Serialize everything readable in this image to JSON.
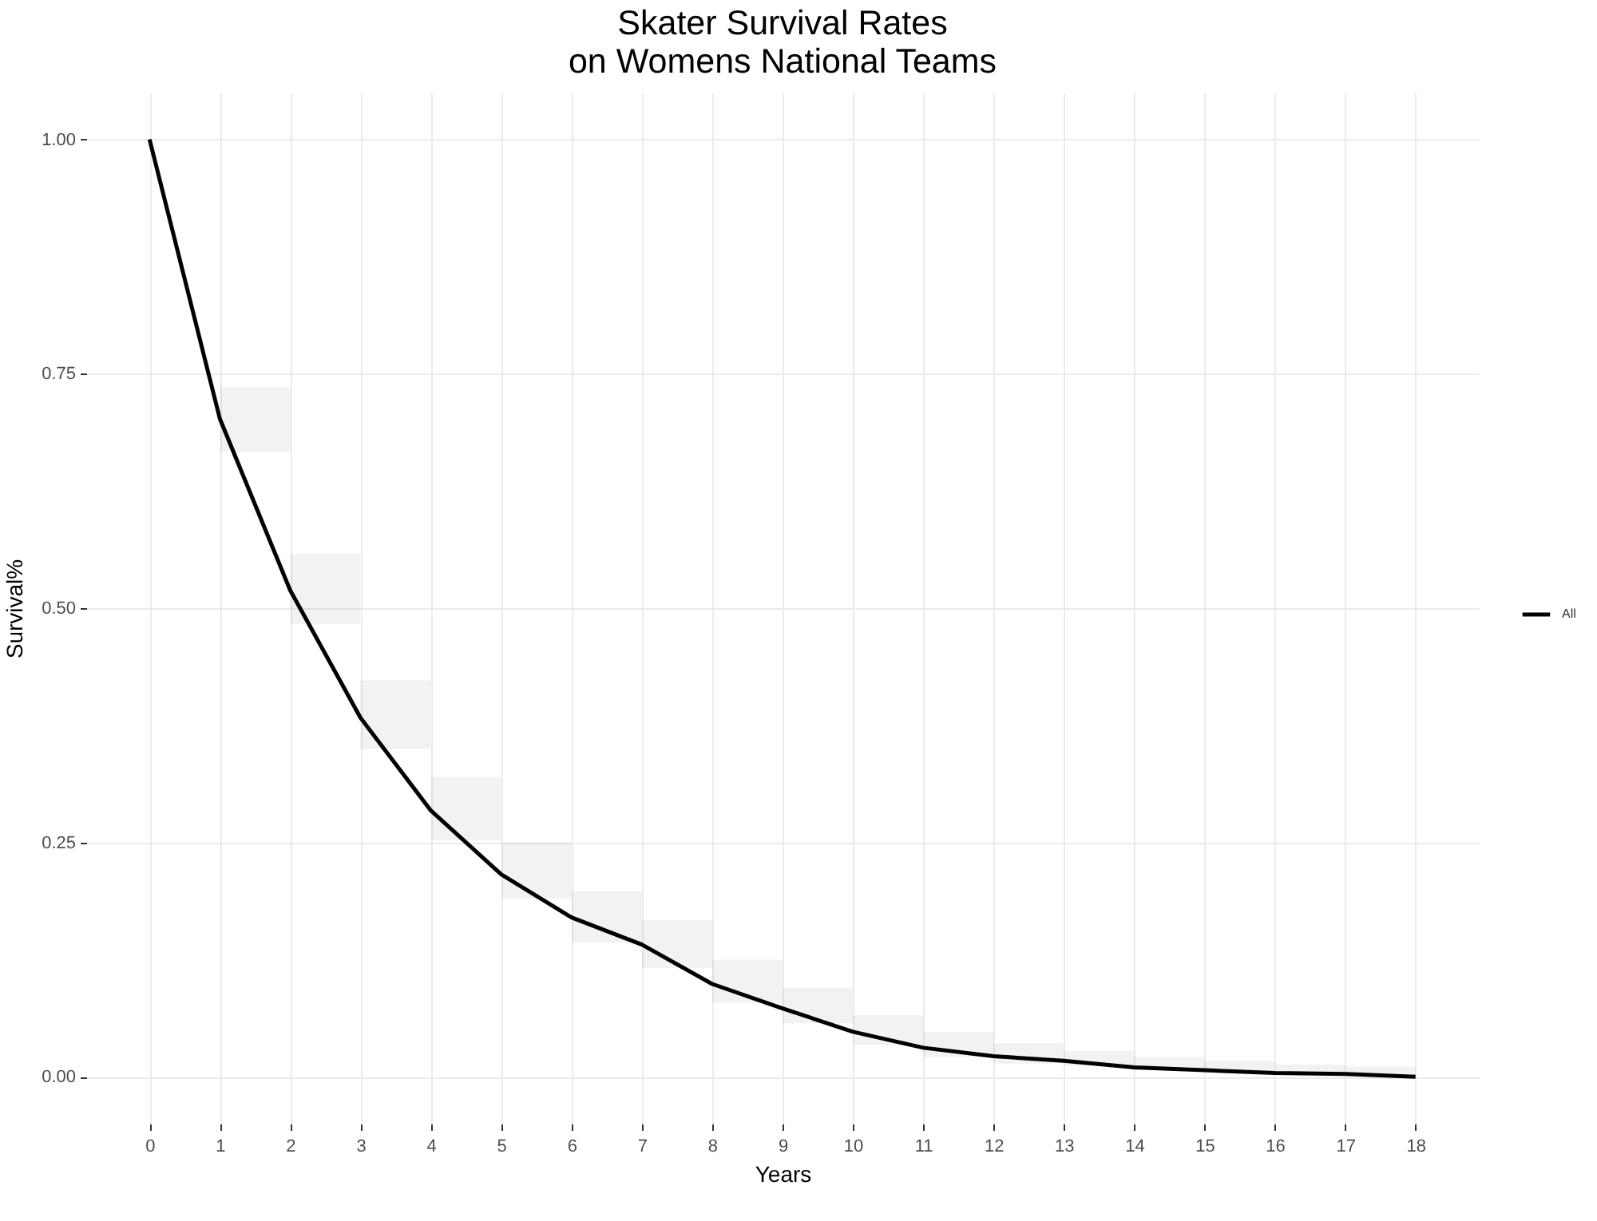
{
  "chart_data": {
    "type": "line",
    "title": "Skater Survival Rates\non Womens National Teams",
    "xlabel": "Years",
    "ylabel": "Survival%",
    "x": [
      0,
      1,
      2,
      3,
      4,
      5,
      6,
      7,
      8,
      9,
      10,
      11,
      12,
      13,
      14,
      15,
      16,
      17,
      18
    ],
    "series": [
      {
        "name": "All",
        "color": "#000000",
        "values": [
          1.0,
          0.702,
          0.519,
          0.383,
          0.284,
          0.216,
          0.17,
          0.141,
          0.099,
          0.073,
          0.048,
          0.031,
          0.022,
          0.017,
          0.01,
          0.007,
          0.004,
          0.003,
          0.0
        ],
        "lower": [
          null,
          0.667,
          0.483,
          0.35,
          0.252,
          0.19,
          0.143,
          0.116,
          0.079,
          0.057,
          0.034,
          0.021,
          0.014,
          0.012,
          0.007,
          0.006,
          0.003,
          0.002,
          0.002
        ],
        "upper": [
          null,
          0.736,
          0.558,
          0.423,
          0.32,
          0.25,
          0.198,
          0.167,
          0.125,
          0.095,
          0.066,
          0.048,
          0.036,
          0.028,
          0.021,
          0.017,
          0.013,
          0.011,
          0.011
        ]
      }
    ],
    "xlim": [
      -0.9,
      18.9
    ],
    "ylim": [
      -0.05,
      1.05
    ],
    "xticks": [
      0,
      1,
      2,
      3,
      4,
      5,
      6,
      7,
      8,
      9,
      10,
      11,
      12,
      13,
      14,
      15,
      16,
      17,
      18
    ],
    "yticks": [
      {
        "value": 0,
        "label": "0.00"
      },
      {
        "value": 0.25,
        "label": "0.25"
      },
      {
        "value": 0.5,
        "label": "0.50"
      },
      {
        "value": 0.75,
        "label": "0.75"
      },
      {
        "value": 1,
        "label": "1.00"
      }
    ],
    "grid": true,
    "legend": "right"
  }
}
